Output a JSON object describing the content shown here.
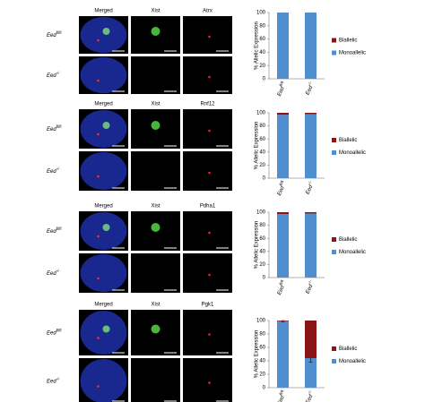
{
  "microscopy": {
    "panels": [
      {
        "headers": [
          "Merged",
          "Xist",
          "Atrx"
        ],
        "rows": [
          {
            "gene": "Eed",
            "genotype": "fl/fl"
          },
          {
            "gene": "Eed",
            "genotype": "-/-"
          }
        ]
      },
      {
        "headers": [
          "Merged",
          "Xist",
          "Rnf12"
        ],
        "rows": [
          {
            "gene": "Eed",
            "genotype": "fl/fl"
          },
          {
            "gene": "Eed",
            "genotype": "-/-"
          }
        ]
      },
      {
        "headers": [
          "Merged",
          "Xist",
          "Pdha1"
        ],
        "rows": [
          {
            "gene": "Eed",
            "genotype": "fl/fl"
          },
          {
            "gene": "Eed",
            "genotype": "-/-"
          }
        ]
      },
      {
        "headers": [
          "Merged",
          "Xist",
          "Pgk1"
        ],
        "rows": [
          {
            "gene": "Eed",
            "genotype": "fl/fl"
          },
          {
            "gene": "Eed",
            "genotype": "-/-"
          }
        ]
      }
    ]
  },
  "chart_data": [
    {
      "type": "bar",
      "stacked": true,
      "y_label": "% Allelic Expression",
      "categories": [
        {
          "gene": "Eed",
          "genotype": "fl/fl"
        },
        {
          "gene": "Eed",
          "genotype": "-/-"
        }
      ],
      "series": [
        {
          "name": "Monoallelic",
          "color": "#4f8fd0",
          "values": [
            100,
            100
          ]
        },
        {
          "name": "Biallelic",
          "color": "#8b1414",
          "values": [
            0,
            0
          ]
        }
      ],
      "ylim": [
        0,
        100
      ],
      "yticks": [
        0,
        20,
        40,
        60,
        80,
        100
      ],
      "legend": "right"
    },
    {
      "type": "bar",
      "stacked": true,
      "y_label": "% Allelic Expression",
      "categories": [
        {
          "gene": "Eed",
          "genotype": "fl/fl"
        },
        {
          "gene": "Eed",
          "genotype": "-/-"
        }
      ],
      "series": [
        {
          "name": "Monoallelic",
          "color": "#4f8fd0",
          "values": [
            97,
            98
          ]
        },
        {
          "name": "Biallelic",
          "color": "#8b1414",
          "values": [
            3,
            2
          ]
        }
      ],
      "ylim": [
        0,
        100
      ],
      "yticks": [
        0,
        20,
        40,
        60,
        80,
        100
      ],
      "legend": "right"
    },
    {
      "type": "bar",
      "stacked": true,
      "y_label": "% Allelic Expression",
      "categories": [
        {
          "gene": "Eed",
          "genotype": "fl/fl"
        },
        {
          "gene": "Eed",
          "genotype": "-/-"
        }
      ],
      "series": [
        {
          "name": "Monoallelic",
          "color": "#4f8fd0",
          "values": [
            97,
            98
          ]
        },
        {
          "name": "Biallelic",
          "color": "#8b1414",
          "values": [
            3,
            2
          ]
        }
      ],
      "ylim": [
        0,
        100
      ],
      "yticks": [
        0,
        20,
        40,
        60,
        80,
        100
      ],
      "legend": "right"
    },
    {
      "type": "bar",
      "stacked": true,
      "y_label": "% Allelic Expression",
      "categories": [
        {
          "gene": "Eed",
          "genotype": "fl/fl"
        },
        {
          "gene": "Eed",
          "genotype": "-/-"
        }
      ],
      "series": [
        {
          "name": "Monoallelic",
          "color": "#4f8fd0",
          "values": [
            99,
            44
          ],
          "errors": [
            1,
            6
          ]
        },
        {
          "name": "Biallelic",
          "color": "#8b1414",
          "values": [
            1,
            56
          ]
        }
      ],
      "ylim": [
        0,
        100
      ],
      "yticks": [
        0,
        20,
        40,
        60,
        80,
        100
      ],
      "legend": "right"
    }
  ]
}
